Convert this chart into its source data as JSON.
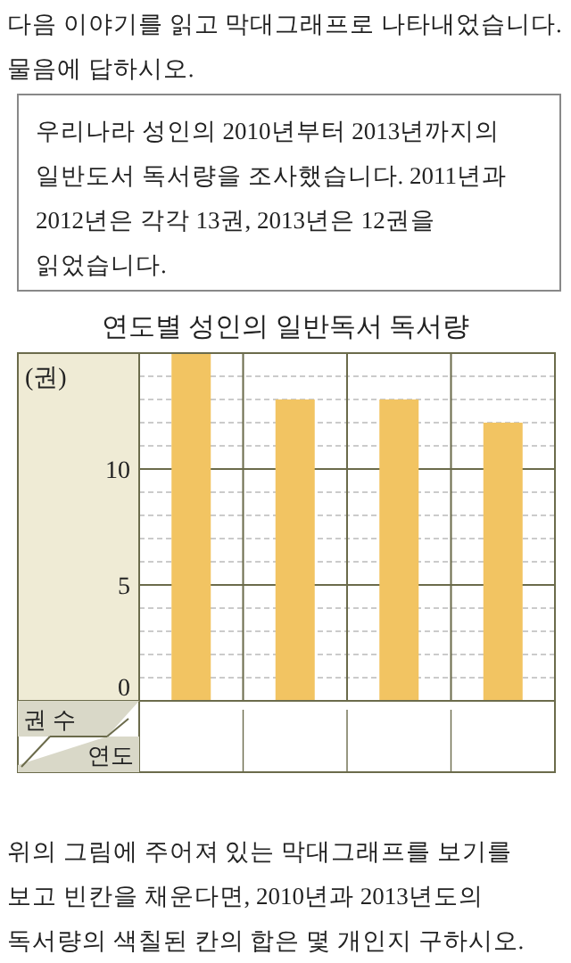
{
  "chart_data": {
    "type": "bar",
    "title": "연도별 성인의 일반독서 독서량",
    "ylabel": "(권)",
    "xlabel": "연도",
    "categories": [
      null,
      null,
      null,
      null
    ],
    "values": [
      15,
      13,
      13,
      12
    ],
    "color": "#f2c462",
    "ylim": [
      0,
      15
    ],
    "yticks": [
      0,
      {
        "value": 1,
        "label": null
      },
      {
        "value": 2,
        "label": null
      },
      {
        "value": 3,
        "label": null
      },
      {
        "value": 4,
        "label": null
      },
      5,
      {
        "value": 6,
        "label": null
      },
      {
        "value": 7,
        "label": null
      },
      {
        "value": 8,
        "label": null
      },
      {
        "value": 9,
        "label": null
      },
      10,
      {
        "value": 11,
        "label": null
      },
      {
        "value": 12,
        "label": null
      },
      {
        "value": 13,
        "label": null
      },
      {
        "value": 14,
        "label": null
      }
    ],
    "grid": "y",
    "annotations": [
      "다음 이야기를 읽고 막대그래프로 나타내었습니다. 물음에 답하시오.",
      "우리나라 성인의 2010년부터 2013년까지의 일반도서 독서량을 조사했습니다. 2011년과 2012년은 각각 13권, 2013년은 12권을 읽었습니다.",
      "권 수",
      "위의 그림에 주어져 있는 막대그래프를 보기를 보고 빈칸을 채운다면, 2010년과 2013년도의 독서량의 색칠된 칸의 합은 몇 개인지 구하시오."
    ]
  }
}
